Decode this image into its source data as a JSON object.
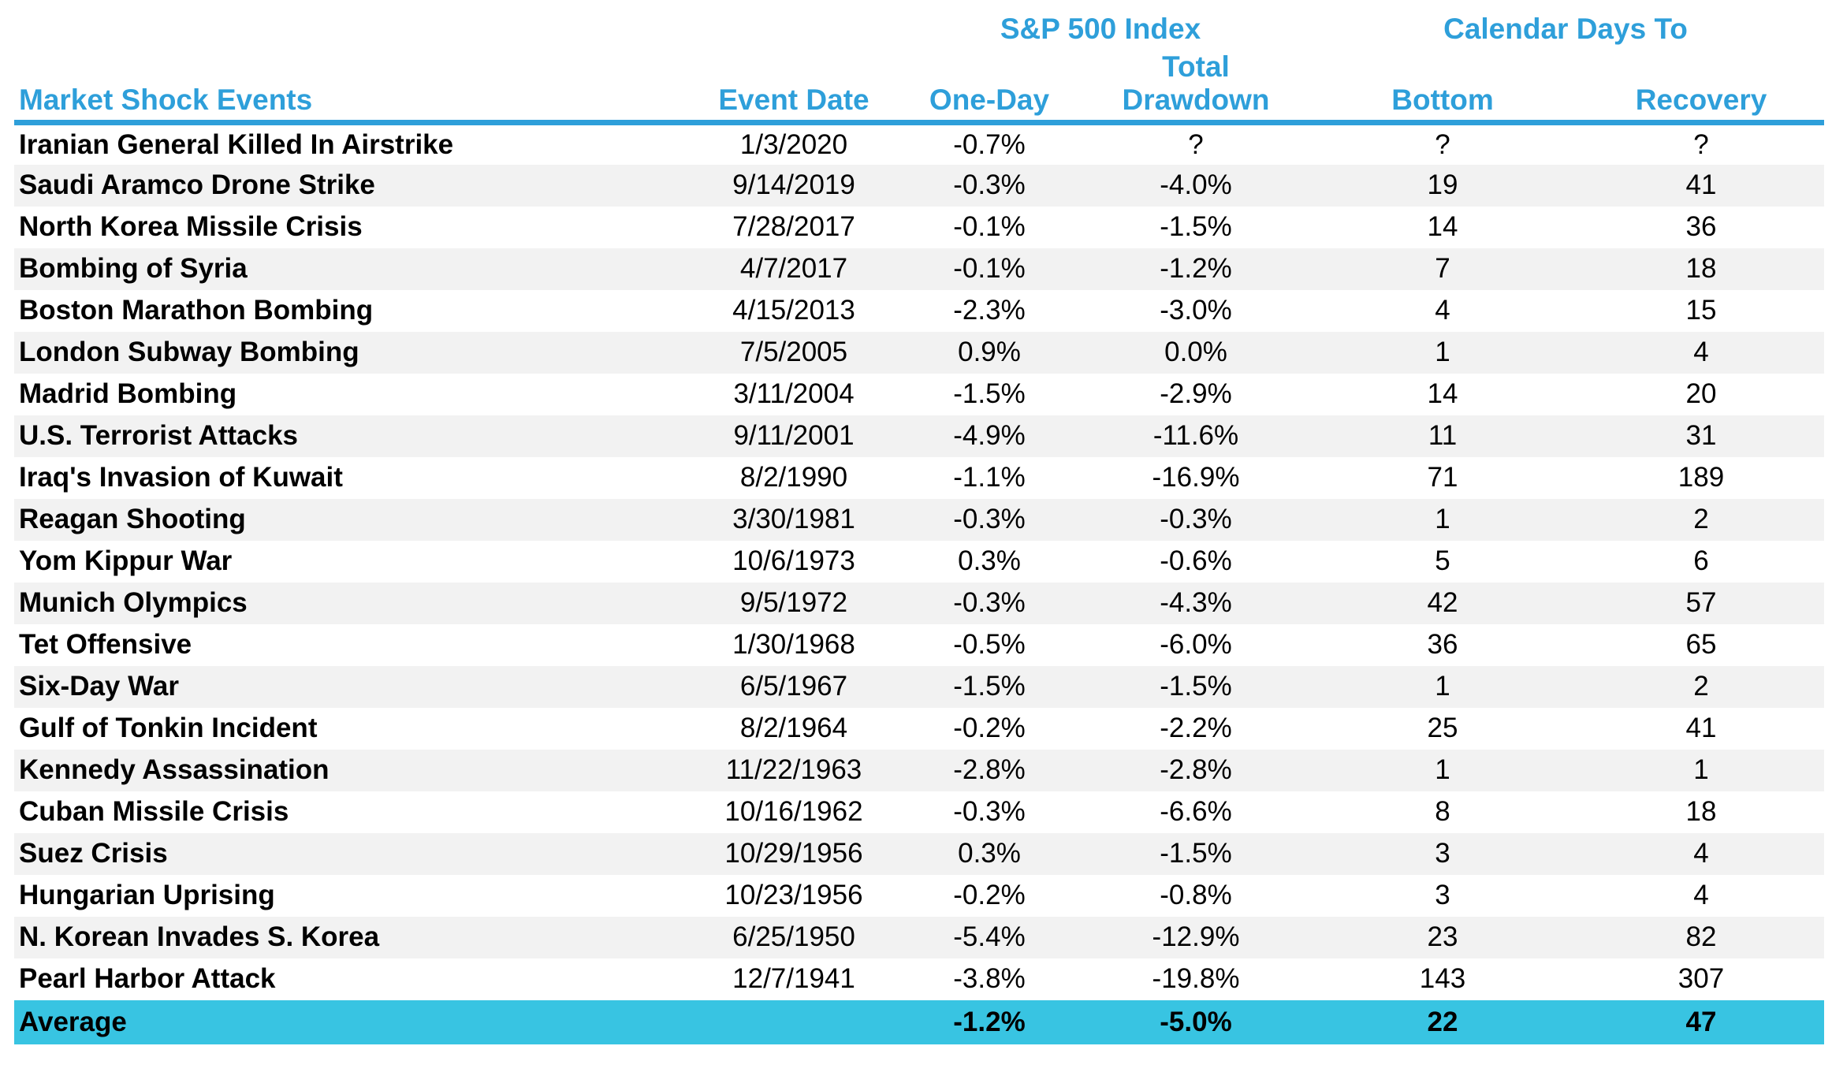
{
  "colors": {
    "header_blue": "#2E9FDA",
    "average_cyan": "#38C4E2",
    "stripe_gray": "#F2F2F2",
    "text_black": "#000000"
  },
  "chart_data": {
    "type": "table",
    "title": "Market Shock Events",
    "group_headers": {
      "sp500": "S&P 500 Index",
      "calendar_days": "Calendar Days To"
    },
    "columns": [
      "Market Shock Events",
      "Event Date",
      "One-Day",
      "Total Drawdown",
      "Bottom",
      "Recovery"
    ],
    "rows": [
      {
        "event": "Iranian General Killed In Airstrike",
        "date": "1/3/2020",
        "one_day": "-0.7%",
        "total_drawdown": "?",
        "bottom": "?",
        "recovery": "?"
      },
      {
        "event": "Saudi Aramco Drone Strike",
        "date": "9/14/2019",
        "one_day": "-0.3%",
        "total_drawdown": "-4.0%",
        "bottom": "19",
        "recovery": "41"
      },
      {
        "event": "North Korea Missile Crisis",
        "date": "7/28/2017",
        "one_day": "-0.1%",
        "total_drawdown": "-1.5%",
        "bottom": "14",
        "recovery": "36"
      },
      {
        "event": "Bombing of Syria",
        "date": "4/7/2017",
        "one_day": "-0.1%",
        "total_drawdown": "-1.2%",
        "bottom": "7",
        "recovery": "18"
      },
      {
        "event": "Boston Marathon Bombing",
        "date": "4/15/2013",
        "one_day": "-2.3%",
        "total_drawdown": "-3.0%",
        "bottom": "4",
        "recovery": "15"
      },
      {
        "event": "London Subway Bombing",
        "date": "7/5/2005",
        "one_day": "0.9%",
        "total_drawdown": "0.0%",
        "bottom": "1",
        "recovery": "4"
      },
      {
        "event": "Madrid Bombing",
        "date": "3/11/2004",
        "one_day": "-1.5%",
        "total_drawdown": "-2.9%",
        "bottom": "14",
        "recovery": "20"
      },
      {
        "event": "U.S. Terrorist Attacks",
        "date": "9/11/2001",
        "one_day": "-4.9%",
        "total_drawdown": "-11.6%",
        "bottom": "11",
        "recovery": "31"
      },
      {
        "event": "Iraq's Invasion of Kuwait",
        "date": "8/2/1990",
        "one_day": "-1.1%",
        "total_drawdown": "-16.9%",
        "bottom": "71",
        "recovery": "189"
      },
      {
        "event": "Reagan Shooting",
        "date": "3/30/1981",
        "one_day": "-0.3%",
        "total_drawdown": "-0.3%",
        "bottom": "1",
        "recovery": "2"
      },
      {
        "event": "Yom Kippur War",
        "date": "10/6/1973",
        "one_day": "0.3%",
        "total_drawdown": "-0.6%",
        "bottom": "5",
        "recovery": "6"
      },
      {
        "event": "Munich Olympics",
        "date": "9/5/1972",
        "one_day": "-0.3%",
        "total_drawdown": "-4.3%",
        "bottom": "42",
        "recovery": "57"
      },
      {
        "event": "Tet Offensive",
        "date": "1/30/1968",
        "one_day": "-0.5%",
        "total_drawdown": "-6.0%",
        "bottom": "36",
        "recovery": "65"
      },
      {
        "event": "Six-Day War",
        "date": "6/5/1967",
        "one_day": "-1.5%",
        "total_drawdown": "-1.5%",
        "bottom": "1",
        "recovery": "2"
      },
      {
        "event": "Gulf of Tonkin Incident",
        "date": "8/2/1964",
        "one_day": "-0.2%",
        "total_drawdown": "-2.2%",
        "bottom": "25",
        "recovery": "41"
      },
      {
        "event": "Kennedy Assassination",
        "date": "11/22/1963",
        "one_day": "-2.8%",
        "total_drawdown": "-2.8%",
        "bottom": "1",
        "recovery": "1"
      },
      {
        "event": "Cuban Missile Crisis",
        "date": "10/16/1962",
        "one_day": "-0.3%",
        "total_drawdown": "-6.6%",
        "bottom": "8",
        "recovery": "18"
      },
      {
        "event": "Suez Crisis",
        "date": "10/29/1956",
        "one_day": "0.3%",
        "total_drawdown": "-1.5%",
        "bottom": "3",
        "recovery": "4"
      },
      {
        "event": "Hungarian Uprising",
        "date": "10/23/1956",
        "one_day": "-0.2%",
        "total_drawdown": "-0.8%",
        "bottom": "3",
        "recovery": "4"
      },
      {
        "event": "N. Korean Invades S. Korea",
        "date": "6/25/1950",
        "one_day": "-5.4%",
        "total_drawdown": "-12.9%",
        "bottom": "23",
        "recovery": "82"
      },
      {
        "event": "Pearl Harbor Attack",
        "date": "12/7/1941",
        "one_day": "-3.8%",
        "total_drawdown": "-19.8%",
        "bottom": "143",
        "recovery": "307"
      }
    ],
    "average": {
      "label": "Average",
      "date": "",
      "one_day": "-1.2%",
      "total_drawdown": "-5.0%",
      "bottom": "22",
      "recovery": "47"
    }
  }
}
